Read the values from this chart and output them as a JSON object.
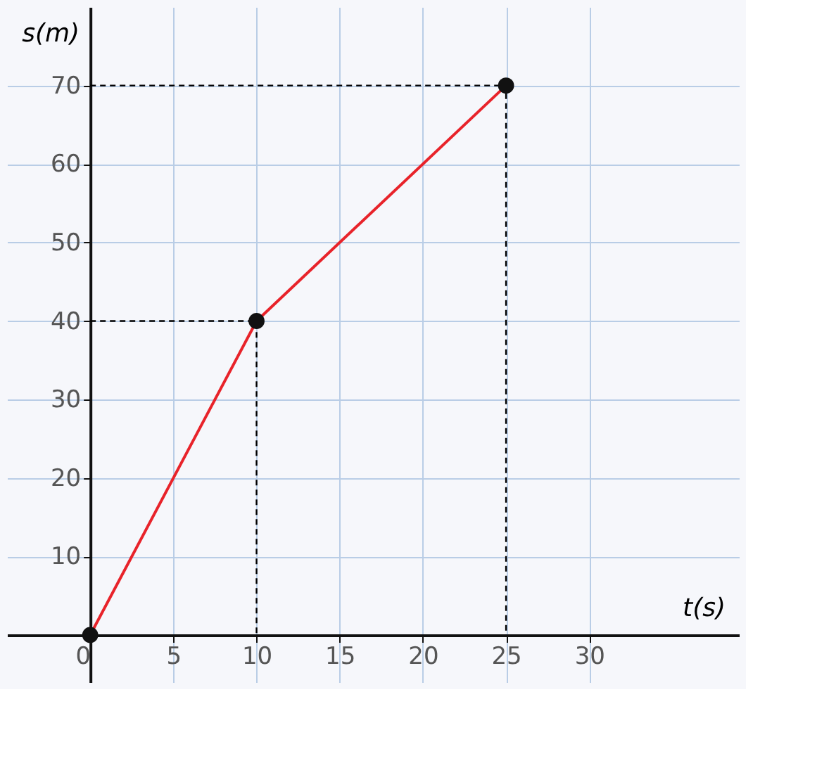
{
  "chart_data": {
    "type": "line",
    "xlabel": "t(s)",
    "ylabel": "s(m)",
    "xlim": [
      -5,
      39
    ],
    "ylim": [
      -6,
      80
    ],
    "xticks": [
      0,
      5,
      10,
      15,
      20,
      25,
      30
    ],
    "yticks": [
      10,
      20,
      30,
      40,
      50,
      60,
      70
    ],
    "grid": true,
    "series": [
      {
        "x": [
          0,
          10,
          10
        ],
        "values": [
          40,
          40,
          0
        ],
        "color": "#000000",
        "line_style": "dashed",
        "marker": "none"
      },
      {
        "x": [
          0,
          25,
          25
        ],
        "values": [
          70,
          70,
          0
        ],
        "color": "#000000",
        "line_style": "dashed",
        "marker": "none"
      },
      {
        "x": [
          0,
          10,
          25
        ],
        "values": [
          0,
          40,
          70
        ],
        "color": "#e8232a",
        "line_style": "solid",
        "marker": "none"
      },
      {
        "type": "scatter",
        "x": [
          0,
          10,
          25
        ],
        "values": [
          0,
          40,
          70
        ],
        "color": "#111111",
        "marker": "circle"
      }
    ]
  }
}
